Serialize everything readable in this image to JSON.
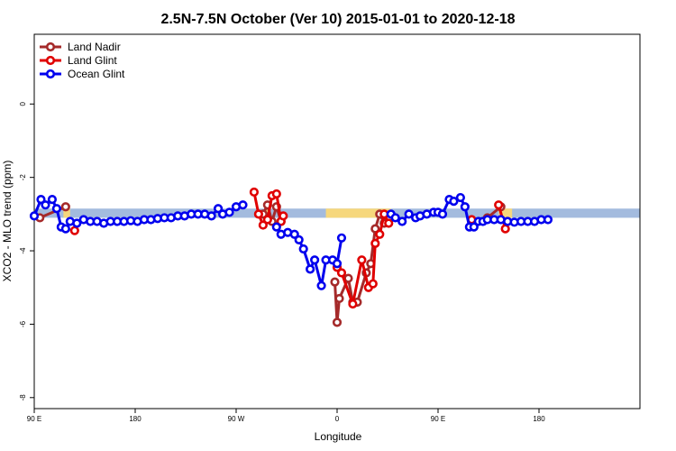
{
  "chart_data": {
    "type": "line",
    "title": "2.5N-7.5N October (Ver 10)   2015-01-01 to 2020-12-18",
    "xlabel": "Longitude",
    "ylabel": "XCO2 - MLO trend (ppm)",
    "xlim": [
      -90,
      180
    ],
    "ylim": [
      -8.3,
      1.9
    ],
    "x_ticks": [
      {
        "value": -90,
        "label": "90 E"
      },
      {
        "value": -45,
        "label": "180"
      },
      {
        "value": 0,
        "label": "90 W"
      },
      {
        "value": 45,
        "label": "0"
      },
      {
        "value": 90,
        "label": "90 E"
      },
      {
        "value": 135,
        "label": "180"
      }
    ],
    "y_ticks": [
      {
        "value": 0,
        "label": "0"
      },
      {
        "value": -2,
        "label": "-2"
      },
      {
        "value": -4,
        "label": "-4"
      },
      {
        "value": -6,
        "label": "-6"
      },
      {
        "value": -8,
        "label": "-8"
      }
    ],
    "legend_position": "top-left",
    "band": {
      "y_top": -2.85,
      "y_bottom": -3.1,
      "ocean_color": "#a3bbde",
      "land_color": "#f6d77c",
      "land_ranges": [
        [
          -77,
          -74
        ],
        [
          13,
          15
        ],
        [
          40,
          69
        ],
        [
          117,
          123
        ]
      ]
    },
    "series": [
      {
        "name": "Land Nadir",
        "color": "#a52a2a",
        "segments": [
          [
            [
              -87.5,
              -3.1
            ],
            [
              -76,
              -2.8
            ]
          ],
          [
            [
              12,
              -3.0
            ],
            [
              14,
              -2.75
            ],
            [
              16,
              -3.2
            ],
            [
              18,
              -2.8
            ],
            [
              20,
              -3.2
            ]
          ],
          [
            [
              44,
              -4.85
            ],
            [
              45,
              -5.95
            ],
            [
              46,
              -5.3
            ],
            [
              50,
              -4.75
            ],
            [
              52,
              -5.4
            ],
            [
              54,
              -5.4
            ],
            [
              58,
              -4.6
            ],
            [
              60,
              -4.35
            ],
            [
              62,
              -3.4
            ],
            [
              64,
              -3.0
            ],
            [
              66,
              -3.25
            ],
            [
              68,
              -3.15
            ]
          ],
          [
            [
              112,
              -3.1
            ],
            [
              118,
              -2.8
            ]
          ]
        ]
      },
      {
        "name": "Land Glint",
        "color": "#e00000",
        "segments": [
          [
            [
              -72,
              -3.45
            ]
          ],
          [
            [
              8,
              -2.4
            ],
            [
              10,
              -3.0
            ],
            [
              12,
              -3.3
            ],
            [
              14,
              -3.15
            ],
            [
              16,
              -2.5
            ],
            [
              18,
              -2.45
            ],
            [
              20,
              -3.2
            ],
            [
              21,
              -3.05
            ]
          ],
          [
            [
              45,
              -4.45
            ],
            [
              47,
              -4.6
            ],
            [
              52,
              -5.45
            ],
            [
              56,
              -4.25
            ],
            [
              59,
              -5.0
            ],
            [
              61,
              -4.9
            ],
            [
              62,
              -3.8
            ],
            [
              64,
              -3.55
            ],
            [
              66,
              -3.0
            ],
            [
              68,
              -3.25
            ]
          ],
          [
            [
              105,
              -3.15
            ]
          ],
          [
            [
              117,
              -2.75
            ],
            [
              120,
              -3.4
            ]
          ]
        ]
      },
      {
        "name": "Ocean Glint",
        "color": "#0000ee",
        "segments": [
          [
            [
              -90,
              -3.05
            ],
            [
              -87,
              -2.6
            ],
            [
              -85,
              -2.75
            ],
            [
              -82,
              -2.6
            ],
            [
              -80,
              -2.85
            ],
            [
              -78,
              -3.35
            ],
            [
              -76,
              -3.4
            ],
            [
              -74,
              -3.2
            ],
            [
              -71,
              -3.25
            ],
            [
              -68,
              -3.15
            ],
            [
              -65,
              -3.2
            ],
            [
              -62,
              -3.2
            ],
            [
              -59,
              -3.25
            ],
            [
              -56,
              -3.2
            ],
            [
              -53,
              -3.2
            ],
            [
              -50,
              -3.2
            ],
            [
              -47,
              -3.18
            ],
            [
              -44,
              -3.2
            ],
            [
              -41,
              -3.15
            ],
            [
              -38,
              -3.15
            ],
            [
              -35,
              -3.12
            ],
            [
              -32,
              -3.1
            ],
            [
              -29,
              -3.1
            ],
            [
              -26,
              -3.05
            ],
            [
              -23,
              -3.05
            ],
            [
              -20,
              -3.0
            ],
            [
              -17,
              -3.0
            ],
            [
              -14,
              -3.0
            ],
            [
              -11,
              -3.05
            ],
            [
              -8,
              -2.85
            ],
            [
              -6,
              -3.0
            ],
            [
              -3,
              -2.95
            ],
            [
              0,
              -2.8
            ],
            [
              3,
              -2.75
            ]
          ],
          [
            [
              18,
              -3.35
            ],
            [
              20,
              -3.55
            ],
            [
              23,
              -3.5
            ],
            [
              26,
              -3.55
            ],
            [
              28,
              -3.7
            ],
            [
              30,
              -3.95
            ],
            [
              33,
              -4.5
            ],
            [
              35,
              -4.25
            ],
            [
              38,
              -4.95
            ],
            [
              40,
              -4.25
            ],
            [
              43,
              -4.25
            ],
            [
              45,
              -4.35
            ],
            [
              47,
              -3.65
            ]
          ],
          [
            [
              69,
              -3.0
            ],
            [
              71,
              -3.1
            ],
            [
              74,
              -3.2
            ],
            [
              77,
              -3.0
            ],
            [
              80,
              -3.1
            ],
            [
              82,
              -3.05
            ],
            [
              85,
              -3.0
            ],
            [
              88,
              -2.95
            ],
            [
              90,
              -2.95
            ],
            [
              92,
              -3.0
            ],
            [
              95,
              -2.6
            ],
            [
              97,
              -2.65
            ],
            [
              100,
              -2.55
            ],
            [
              102,
              -2.8
            ],
            [
              104,
              -3.35
            ],
            [
              106,
              -3.35
            ],
            [
              108,
              -3.2
            ],
            [
              110,
              -3.2
            ],
            [
              112,
              -3.15
            ],
            [
              115,
              -3.15
            ],
            [
              118,
              -3.15
            ],
            [
              121,
              -3.2
            ],
            [
              124,
              -3.22
            ],
            [
              127,
              -3.2
            ],
            [
              130,
              -3.2
            ],
            [
              133,
              -3.2
            ],
            [
              136,
              -3.15
            ],
            [
              139,
              -3.15
            ]
          ]
        ]
      }
    ]
  }
}
